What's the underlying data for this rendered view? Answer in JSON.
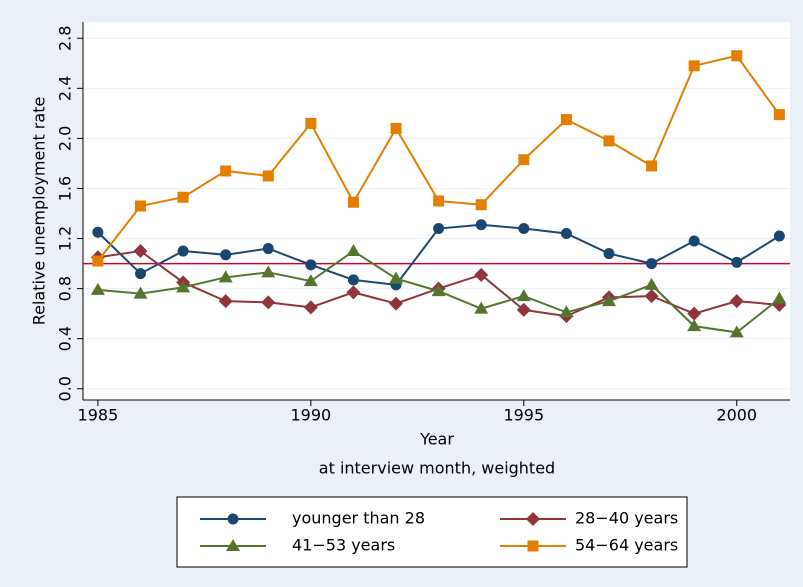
{
  "chart_data": {
    "type": "line",
    "y_label": "Relative unemployment rate",
    "x_label": "Year",
    "note": "at interview month, weighted",
    "x": [
      1985,
      1986,
      1987,
      1988,
      1989,
      1990,
      1991,
      1992,
      1993,
      1994,
      1995,
      1996,
      1997,
      1998,
      1999,
      2000,
      2001
    ],
    "xlim": [
      1984.65,
      2001.25
    ],
    "xticks": [
      1985,
      1990,
      1995,
      2000
    ],
    "ylim": [
      -0.09,
      2.93
    ],
    "yticks": [
      {
        "value": 0,
        "label": "0.0"
      },
      0.4,
      0.8,
      1.2,
      1.6,
      {
        "value": 2,
        "label": "2.0"
      },
      2.4,
      2.8
    ],
    "grid": true,
    "hline": {
      "value": 1,
      "color": "#c10534"
    },
    "series": [
      {
        "name": "younger than 28",
        "color": "#1a476f",
        "marker": "circle",
        "values": [
          1.25,
          0.92,
          1.1,
          1.07,
          1.12,
          0.99,
          0.87,
          0.83,
          1.28,
          1.31,
          1.28,
          1.24,
          1.08,
          1.0,
          1.18,
          1.01,
          1.22
        ]
      },
      {
        "name": "28−40 years",
        "color": "#90353b",
        "marker": "diamond",
        "values": [
          1.05,
          1.1,
          0.85,
          0.7,
          0.69,
          0.65,
          0.77,
          0.68,
          0.8,
          0.91,
          0.63,
          0.58,
          0.73,
          0.74,
          0.6,
          0.7,
          0.67
        ]
      },
      {
        "name": "41−53 years",
        "color": "#55752f",
        "marker": "triangle",
        "values": [
          0.79,
          0.76,
          0.81,
          0.89,
          0.93,
          0.86,
          1.1,
          0.88,
          0.78,
          0.64,
          0.74,
          0.61,
          0.7,
          0.83,
          0.5,
          0.45,
          0.72
        ]
      },
      {
        "name": "54−64 years",
        "color": "#e37e00",
        "marker": "square",
        "values": [
          1.02,
          1.46,
          1.53,
          1.74,
          1.7,
          2.12,
          1.49,
          2.08,
          1.5,
          1.47,
          1.83,
          2.15,
          1.98,
          1.78,
          2.58,
          2.66,
          2.19
        ]
      }
    ]
  }
}
